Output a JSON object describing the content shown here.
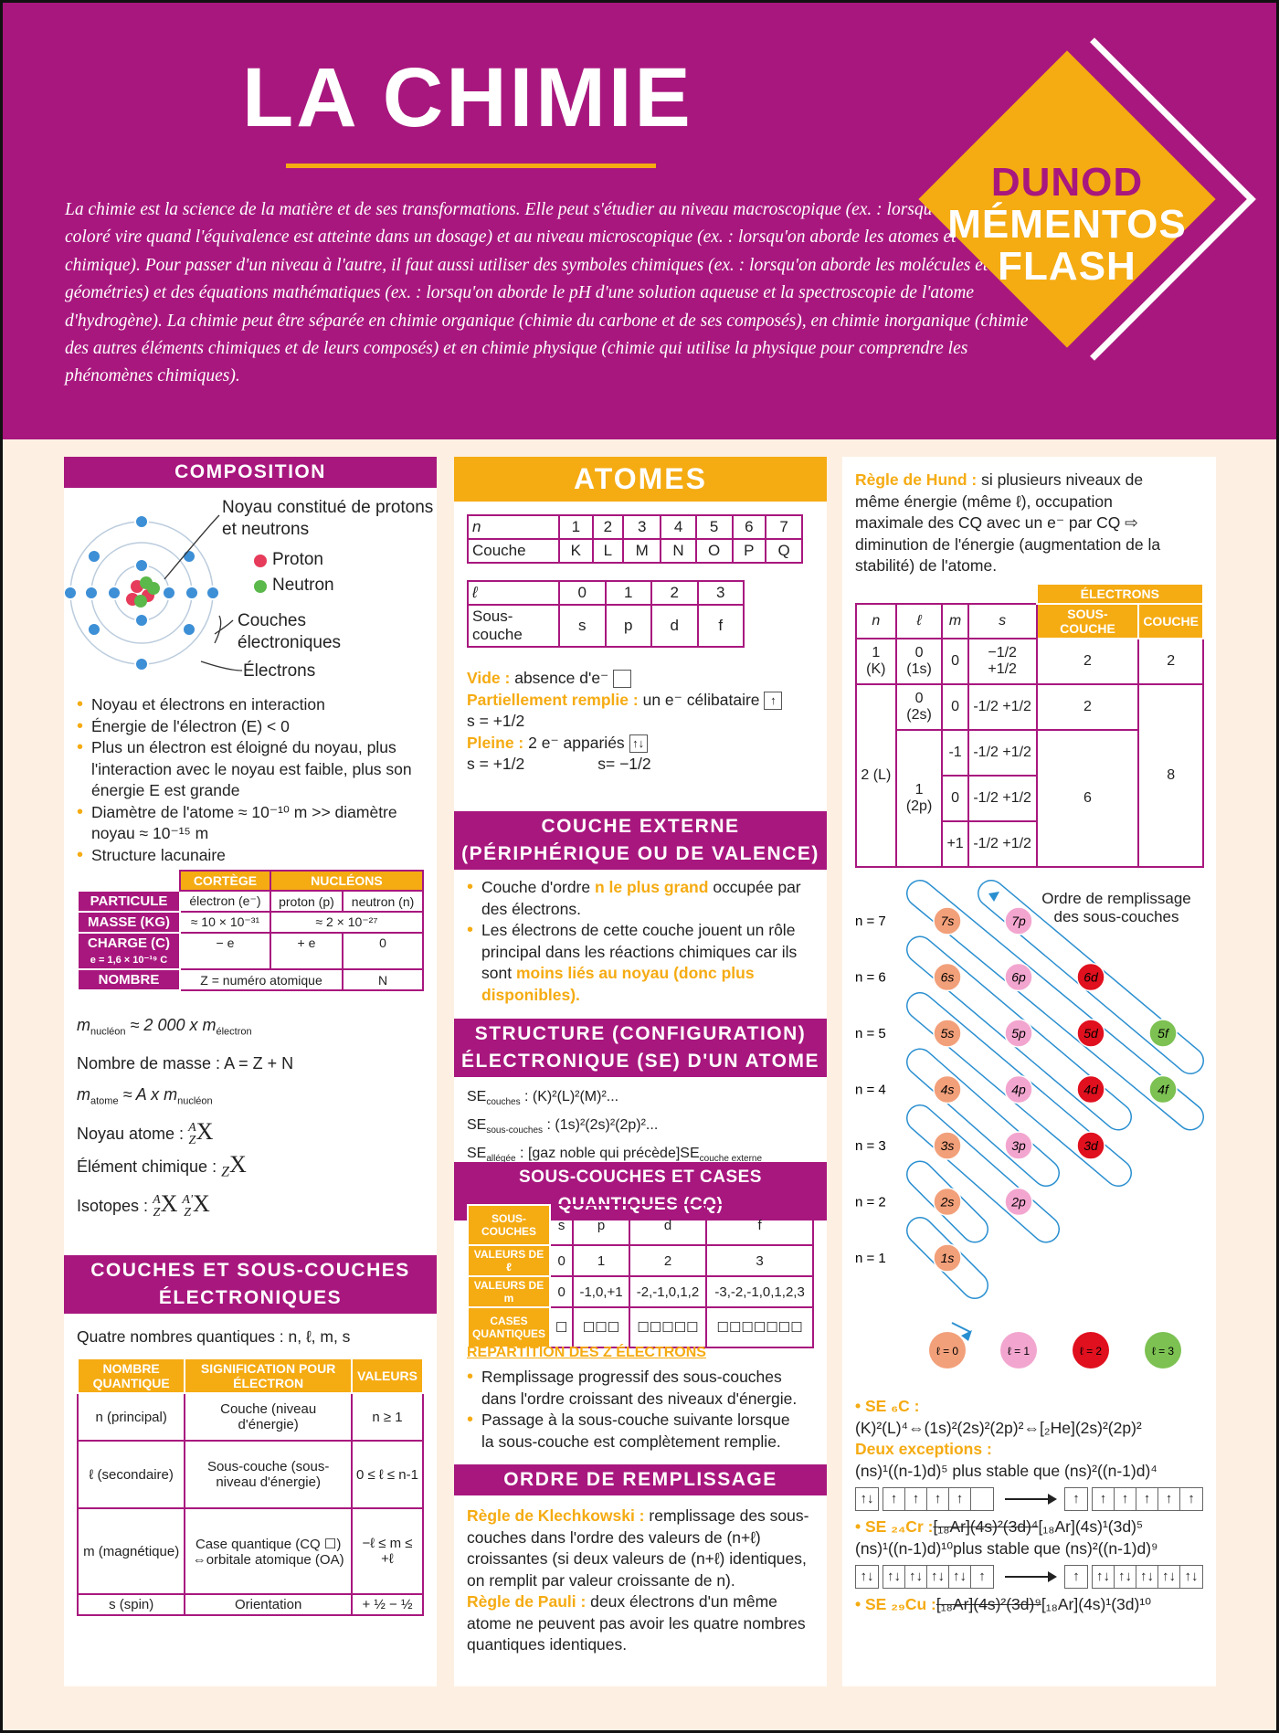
{
  "header": {
    "title": "LA CHIMIE",
    "intro": "La chimie est la science de la matière et de ses transformations. Elle peut s'étudier au niveau macroscopique (ex. : lorsqu'un indicateur coloré vire quand l'équivalence est atteinte dans un dosage) et au niveau microscopique (ex. : lorsqu'on aborde les atomes et la liaison chimique). Pour passer d'un niveau à l'autre, il faut aussi utiliser des symboles chimiques (ex. : lorsqu'on aborde les molécules et leurs géométries) et des équations mathématiques (ex. : lorsqu'on aborde le pH d'une solution aqueuse et la spectroscopie de l'atome d'hydrogène). La chimie peut être séparée en chimie organique (chimie du carbone et de ses composés), en chimie inorganique (chimie des autres éléments chimiques et de leurs composés) et en chimie physique (chimie qui utilise la physique pour comprendre les phénomènes chimiques)."
  },
  "logo": {
    "line1": "DUNOD",
    "line2": "MÉMENTOS",
    "line3": "FLASH",
    "colors": {
      "purple": "#a8177e",
      "orange": "#f5ab12"
    }
  },
  "composition": {
    "title": "COMPOSITION",
    "diagram": {
      "noyau": "Noyau constitué de protons et neutrons",
      "proton": "Proton",
      "neutron": "Neutron",
      "couches": "Couches électroniques",
      "electrons": "Électrons"
    },
    "bullets": [
      "Noyau et électrons en interaction",
      "Énergie de l'électron (E) < 0",
      "Plus un électron est éloigné du noyau, plus l'interaction avec le noyau est faible, plus son énergie E est grande",
      "Diamètre de l'atome ≈ 10⁻¹⁰ m >> diamètre noyau ≈ 10⁻¹⁵ m",
      "Structure lacunaire"
    ],
    "table": {
      "h_cortege": "CORTÈGE",
      "h_nucleons": "NUCLÉONS",
      "r_particule": "PARTICULE",
      "electron": "électron (e⁻)",
      "proton": "proton (p)",
      "neutron": "neutron (n)",
      "r_masse": "MASSE (KG)",
      "m_e": "≈ 10 × 10⁻³¹",
      "m_n": "≈ 2 × 10⁻²⁷",
      "r_charge": "CHARGE (C)",
      "r_charge_sub": "e = 1,6 × 10⁻¹⁹ C",
      "c_e": "− e",
      "c_p": "+ e",
      "c_n": "0",
      "r_nombre": "NOMBRE",
      "z": "Z = numéro atomique",
      "n": "N"
    },
    "formulas": [
      "m_nucléon ≈ 2 000 x m_électron",
      "Nombre de masse : A = Z + N",
      "m_atome ≈ A x m_nucléon",
      "Noyau atome : ᴬ_Z X",
      "Élément chimique : _Z X",
      "Isotopes : ᴬ_Z X  ᴬ'_Z X"
    ],
    "f": {
      "m1": "m",
      "s1": "nucléon",
      "m2": " ≈ 2 000 x m",
      "s2": "électron",
      "masse": "Nombre de masse : A = Z + N",
      "m3": "m",
      "s3": "atome",
      "m4": " ≈ A x m",
      "s4": "nucléon",
      "noyau": "Noyau atome : ",
      "elem": "Élément chimique : ",
      "iso": "Isotopes : ",
      "A": "A",
      "Ap": "A'",
      "Z": "Z",
      "X": "X"
    }
  },
  "couches": {
    "title1": "COUCHES ET SOUS-COUCHES",
    "title2": "ÉLECTRONIQUES",
    "intro": "Quatre nombres quantiques : n, ℓ, m, s",
    "headers": [
      "NOMBRE QUANTIQUE",
      "SIGNIFICATION POUR ÉLECTRON",
      "VALEURS"
    ],
    "rows": [
      [
        "n (principal)",
        "Couche (niveau d'énergie)",
        "n ≥ 1"
      ],
      [
        "ℓ (secondaire)",
        "Sous-couche (sous-niveau d'énergie)",
        "0 ≤ ℓ ≤ n-1"
      ],
      [
        "m (magnétique)",
        "Case quantique (CQ ☐) ⇔orbitale atomique (OA)",
        "−ℓ ≤ m ≤ +ℓ"
      ],
      [
        "s (spin)",
        "Orientation",
        "+ ½ − ½"
      ]
    ]
  },
  "atomes": {
    "title": "ATOMES",
    "t1": {
      "row1": [
        "n",
        "1",
        "2",
        "3",
        "4",
        "5",
        "6",
        "7"
      ],
      "row2": [
        "Couche",
        "K",
        "L",
        "M",
        "N",
        "O",
        "P",
        "Q"
      ]
    },
    "t2": {
      "row1": [
        "ℓ",
        "0",
        "1",
        "2",
        "3"
      ],
      "row2": [
        "Sous-couche",
        "s",
        "p",
        "d",
        "f"
      ]
    },
    "vide_k": "Vide :",
    "vide_v": "absence d'e⁻",
    "part_k": "Partiellement remplie :",
    "part_v": "un e⁻ célibataire",
    "part_s": "s = +1/2",
    "pleine_k": "Pleine :",
    "pleine_v": "2 e⁻ appariés",
    "pleine_s1": "s = +1/2",
    "pleine_s2": "s= −1/2",
    "ext_title1": "COUCHE EXTERNE",
    "ext_title2": "(PÉRIPHÉRIQUE OU DE VALENCE)",
    "ext_b1a": "Couche d'ordre ",
    "ext_b1b": "n le plus grand",
    "ext_b1c": " occupée par des électrons.",
    "ext_b2a": "Les électrons de cette couche jouent un rôle principal dans les réactions chimiques car ils sont ",
    "ext_b2b": "moins liés au noyau (donc plus disponibles).",
    "se_title1": "STRUCTURE (CONFIGURATION)",
    "se_title2": "ÉLECTRONIQUE (SE) D'UN ATOME",
    "se": [
      {
        "a": "SE",
        "s": "couches",
        "b": " : (K)²(L)²(M)²..."
      },
      {
        "a": "SE",
        "s": "sous-couches",
        "b": " : (1s)²(2s)²(2p)²..."
      },
      {
        "a": "SE",
        "s": "allégée",
        "b": " : [gaz noble qui précède]SE",
        "s2": "couche externe"
      }
    ],
    "sc_title": "SOUS-COUCHES ET CASES QUANTIQUES (CQ)",
    "sc": {
      "h": [
        "SOUS-COUCHES",
        "s",
        "p",
        "d",
        "f"
      ],
      "l": [
        "VALEURS DE ℓ",
        "0",
        "1",
        "2",
        "3"
      ],
      "m": [
        "VALEURS DE m",
        "0",
        "-1,0,+1",
        "-2,-1,0,1,2",
        "-3,-2,-1,0,1,2,3"
      ],
      "c": [
        "CASES QUANTIQUES",
        "☐",
        "☐☐☐",
        "☐☐☐☐☐",
        "☐☐☐☐☐☐☐"
      ]
    },
    "rep_title": "RÉPARTITION DES Z ÉLECTRONS",
    "rep": [
      "Remplissage progressif des sous-couches dans l'ordre croissant des niveaux d'énergie.",
      "Passage à la sous-couche suivante lorsque la sous-couche est complètement remplie."
    ],
    "ordre_title": "ORDRE DE REMPLISSAGE",
    "klech_k": "Règle de Klechkowski :",
    "klech_v": " remplissage des sous-couches dans l'ordre des valeurs de (n+ℓ) croissantes (si deux valeurs de (n+ℓ) identiques, on remplit par valeur croissante de n).",
    "pauli_k": "Règle de Pauli :",
    "pauli_v": " deux électrons d'un même atome ne peuvent pas avoir les quatre nombres quantiques identiques."
  },
  "hund": {
    "k": "Règle de Hund :",
    "v": " si plusieurs niveaux de même énergie (même ℓ), occupation maximale des CQ avec un e⁻ par CQ ⇨ diminution de l'énergie (augmentation de la stabilité) de l'atome.",
    "table": {
      "electrons": "ÉLECTRONS",
      "h": [
        "n",
        "ℓ",
        "m",
        "s",
        "SOUS-COUCHE",
        "COUCHE"
      ],
      "n1": "1 (K)",
      "l0a": "0 (1s)",
      "m0": "0",
      "s": "−1/2 +1/2",
      "s2": "-1/2 +1/2",
      "v2": "2",
      "n2": "2 (L)",
      "l0b": "0 (2s)",
      "l1": "1 (2p)",
      "mm1": "-1",
      "mp1": "+1",
      "v6": "6",
      "v8": "8"
    }
  },
  "diagram": {
    "title": "Ordre  de remplissage des sous-couches",
    "rows": [
      "n = 7",
      "n = 6",
      "n = 5",
      "n = 4",
      "n = 3",
      "n = 2",
      "n = 1"
    ],
    "orbitals": [
      "1s",
      "2s",
      "2p",
      "3s",
      "3p",
      "3d",
      "4s",
      "4p",
      "4d",
      "4f",
      "5s",
      "5p",
      "5d",
      "5f",
      "6s",
      "6p",
      "6d",
      "7s",
      "7p"
    ],
    "legend": [
      "ℓ = 0",
      "ℓ = 1",
      "ℓ = 2",
      "ℓ = 3"
    ],
    "colors": {
      "s": "#f2a07a",
      "p": "#f2a6cf",
      "d": "#e0101e",
      "f": "#7cc152",
      "line": "#2a8fd0"
    }
  },
  "se_examples": {
    "c_k": "• SE ₆C :",
    "c_v": "(K)²(L)⁴⇔(1s)²(2s)²(2p)²⇔[₂He](2s)²(2p)²",
    "exc": "Deux exceptions :",
    "exc1": "(ns)¹((n-1)d)⁵ plus stable que (ns)²((n-1)d)⁴",
    "oc1_left": [
      "↑↓",
      "↑",
      "↑",
      "↑",
      "↑",
      ""
    ],
    "oc1_right": [
      "↑",
      "↑",
      "↑",
      "↑",
      "↑",
      "↑"
    ],
    "cr_k": "• SE ₂₄Cr :",
    "cr_strike": "[₁₈Ar](4s)²(3d)⁴",
    "cr_v": "[₁₈Ar](4s)¹(3d)⁵",
    "exc2": "(ns)¹((n-1)d)¹⁰plus stable que (ns)²((n-1)d)⁹",
    "oc2_left": [
      "↑↓",
      "↑↓",
      "↑↓",
      "↑↓",
      "↑↓",
      "↑"
    ],
    "oc2_right": [
      "↑",
      "↑↓",
      "↑↓",
      "↑↓",
      "↑↓",
      "↑↓"
    ],
    "cu_k": "• SE ₂₉Cu :",
    "cu_strike": "[₁₈Ar](4s)²(3d)⁹",
    "cu_v": "[₁₈Ar](4s)¹(3d)¹⁰"
  }
}
